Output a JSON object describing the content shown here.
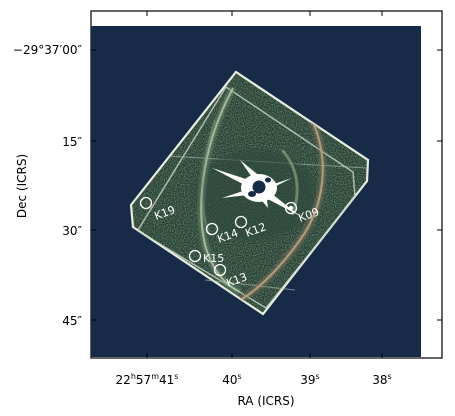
{
  "axes": {
    "xlabel": "RA (ICRS)",
    "ylabel": "Dec (ICRS)",
    "x_ticks": [
      {
        "label": "22",
        "h": "h",
        "m_val": "57",
        "m": "m",
        "s_val": "41",
        "s": "s"
      },
      {
        "val": "40",
        "s": "s"
      },
      {
        "val": "39",
        "s": "s"
      },
      {
        "val": "38",
        "s": "s"
      }
    ],
    "y_ticks": [
      {
        "label": "−29°37′00″"
      },
      {
        "label": "15″"
      },
      {
        "label": "30″"
      },
      {
        "label": "45″"
      }
    ]
  },
  "image": {
    "background_color": "#172a48",
    "sources": [
      {
        "label": "K19"
      },
      {
        "label": "K14"
      },
      {
        "label": "K12"
      },
      {
        "label": "K09"
      },
      {
        "label": "K15"
      },
      {
        "label": "K13"
      }
    ]
  }
}
